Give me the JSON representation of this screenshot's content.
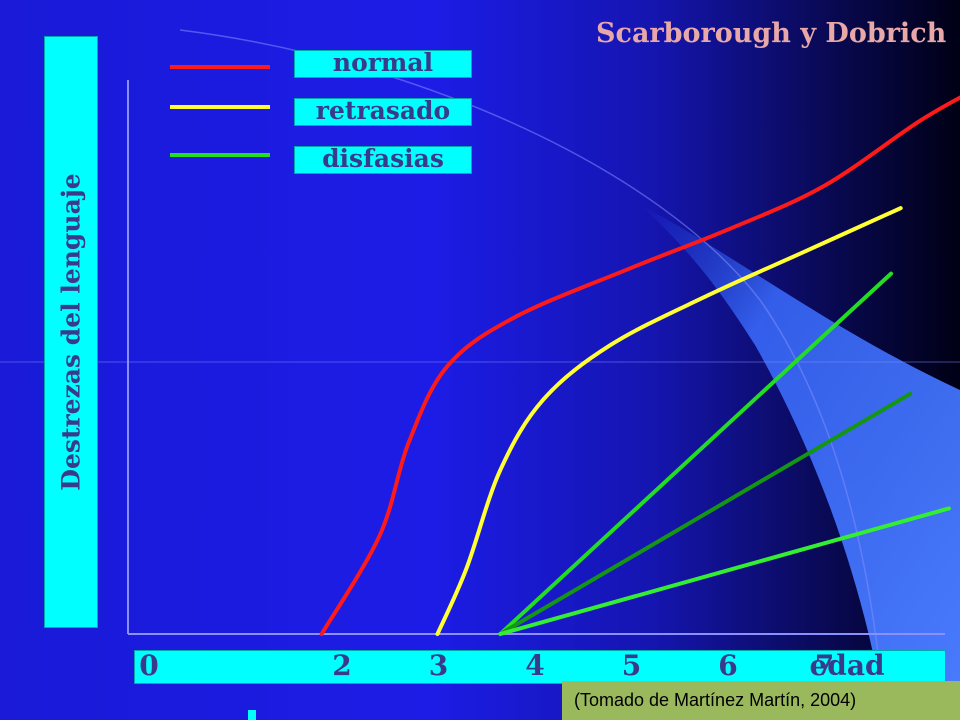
{
  "chart_data": {
    "type": "line",
    "title": "Scarborough y Dobrich",
    "ylabel": "Destrezas del lenguaje",
    "xlabel": "edad",
    "x_ticks": [
      0,
      2,
      3,
      4,
      5,
      6,
      7
    ],
    "xlim": [
      0,
      8.5
    ],
    "ylim": [
      0,
      10
    ],
    "source": "(Tomado de Martínez Martín, 2004)",
    "series": [
      {
        "name": "normal",
        "color": "#ff1a1a",
        "points": [
          [
            1.8,
            0
          ],
          [
            2.4,
            1.8
          ],
          [
            2.7,
            3.5
          ],
          [
            3.1,
            4.9
          ],
          [
            3.8,
            5.8
          ],
          [
            5.0,
            6.7
          ],
          [
            6.0,
            7.4
          ],
          [
            7.0,
            8.2
          ],
          [
            8.0,
            9.4
          ],
          [
            8.6,
            10.0
          ]
        ]
      },
      {
        "name": "retrasado",
        "color": "#ffff33",
        "points": [
          [
            3.0,
            0
          ],
          [
            3.3,
            1.2
          ],
          [
            3.65,
            3.0
          ],
          [
            4.1,
            4.3
          ],
          [
            4.8,
            5.3
          ],
          [
            5.8,
            6.2
          ],
          [
            6.8,
            7.0
          ],
          [
            7.8,
            7.8
          ]
        ]
      },
      {
        "name": "disfasias",
        "color": "#22dd22",
        "points": [
          [
            3.65,
            0
          ],
          [
            7.7,
            6.6
          ]
        ]
      },
      {
        "name": "",
        "color": "#149614",
        "points": [
          [
            3.65,
            0
          ],
          [
            7.9,
            4.4
          ]
        ]
      },
      {
        "name": "",
        "color": "#33ee33",
        "points": [
          [
            3.65,
            0
          ],
          [
            8.3,
            2.3
          ]
        ]
      }
    ]
  }
}
